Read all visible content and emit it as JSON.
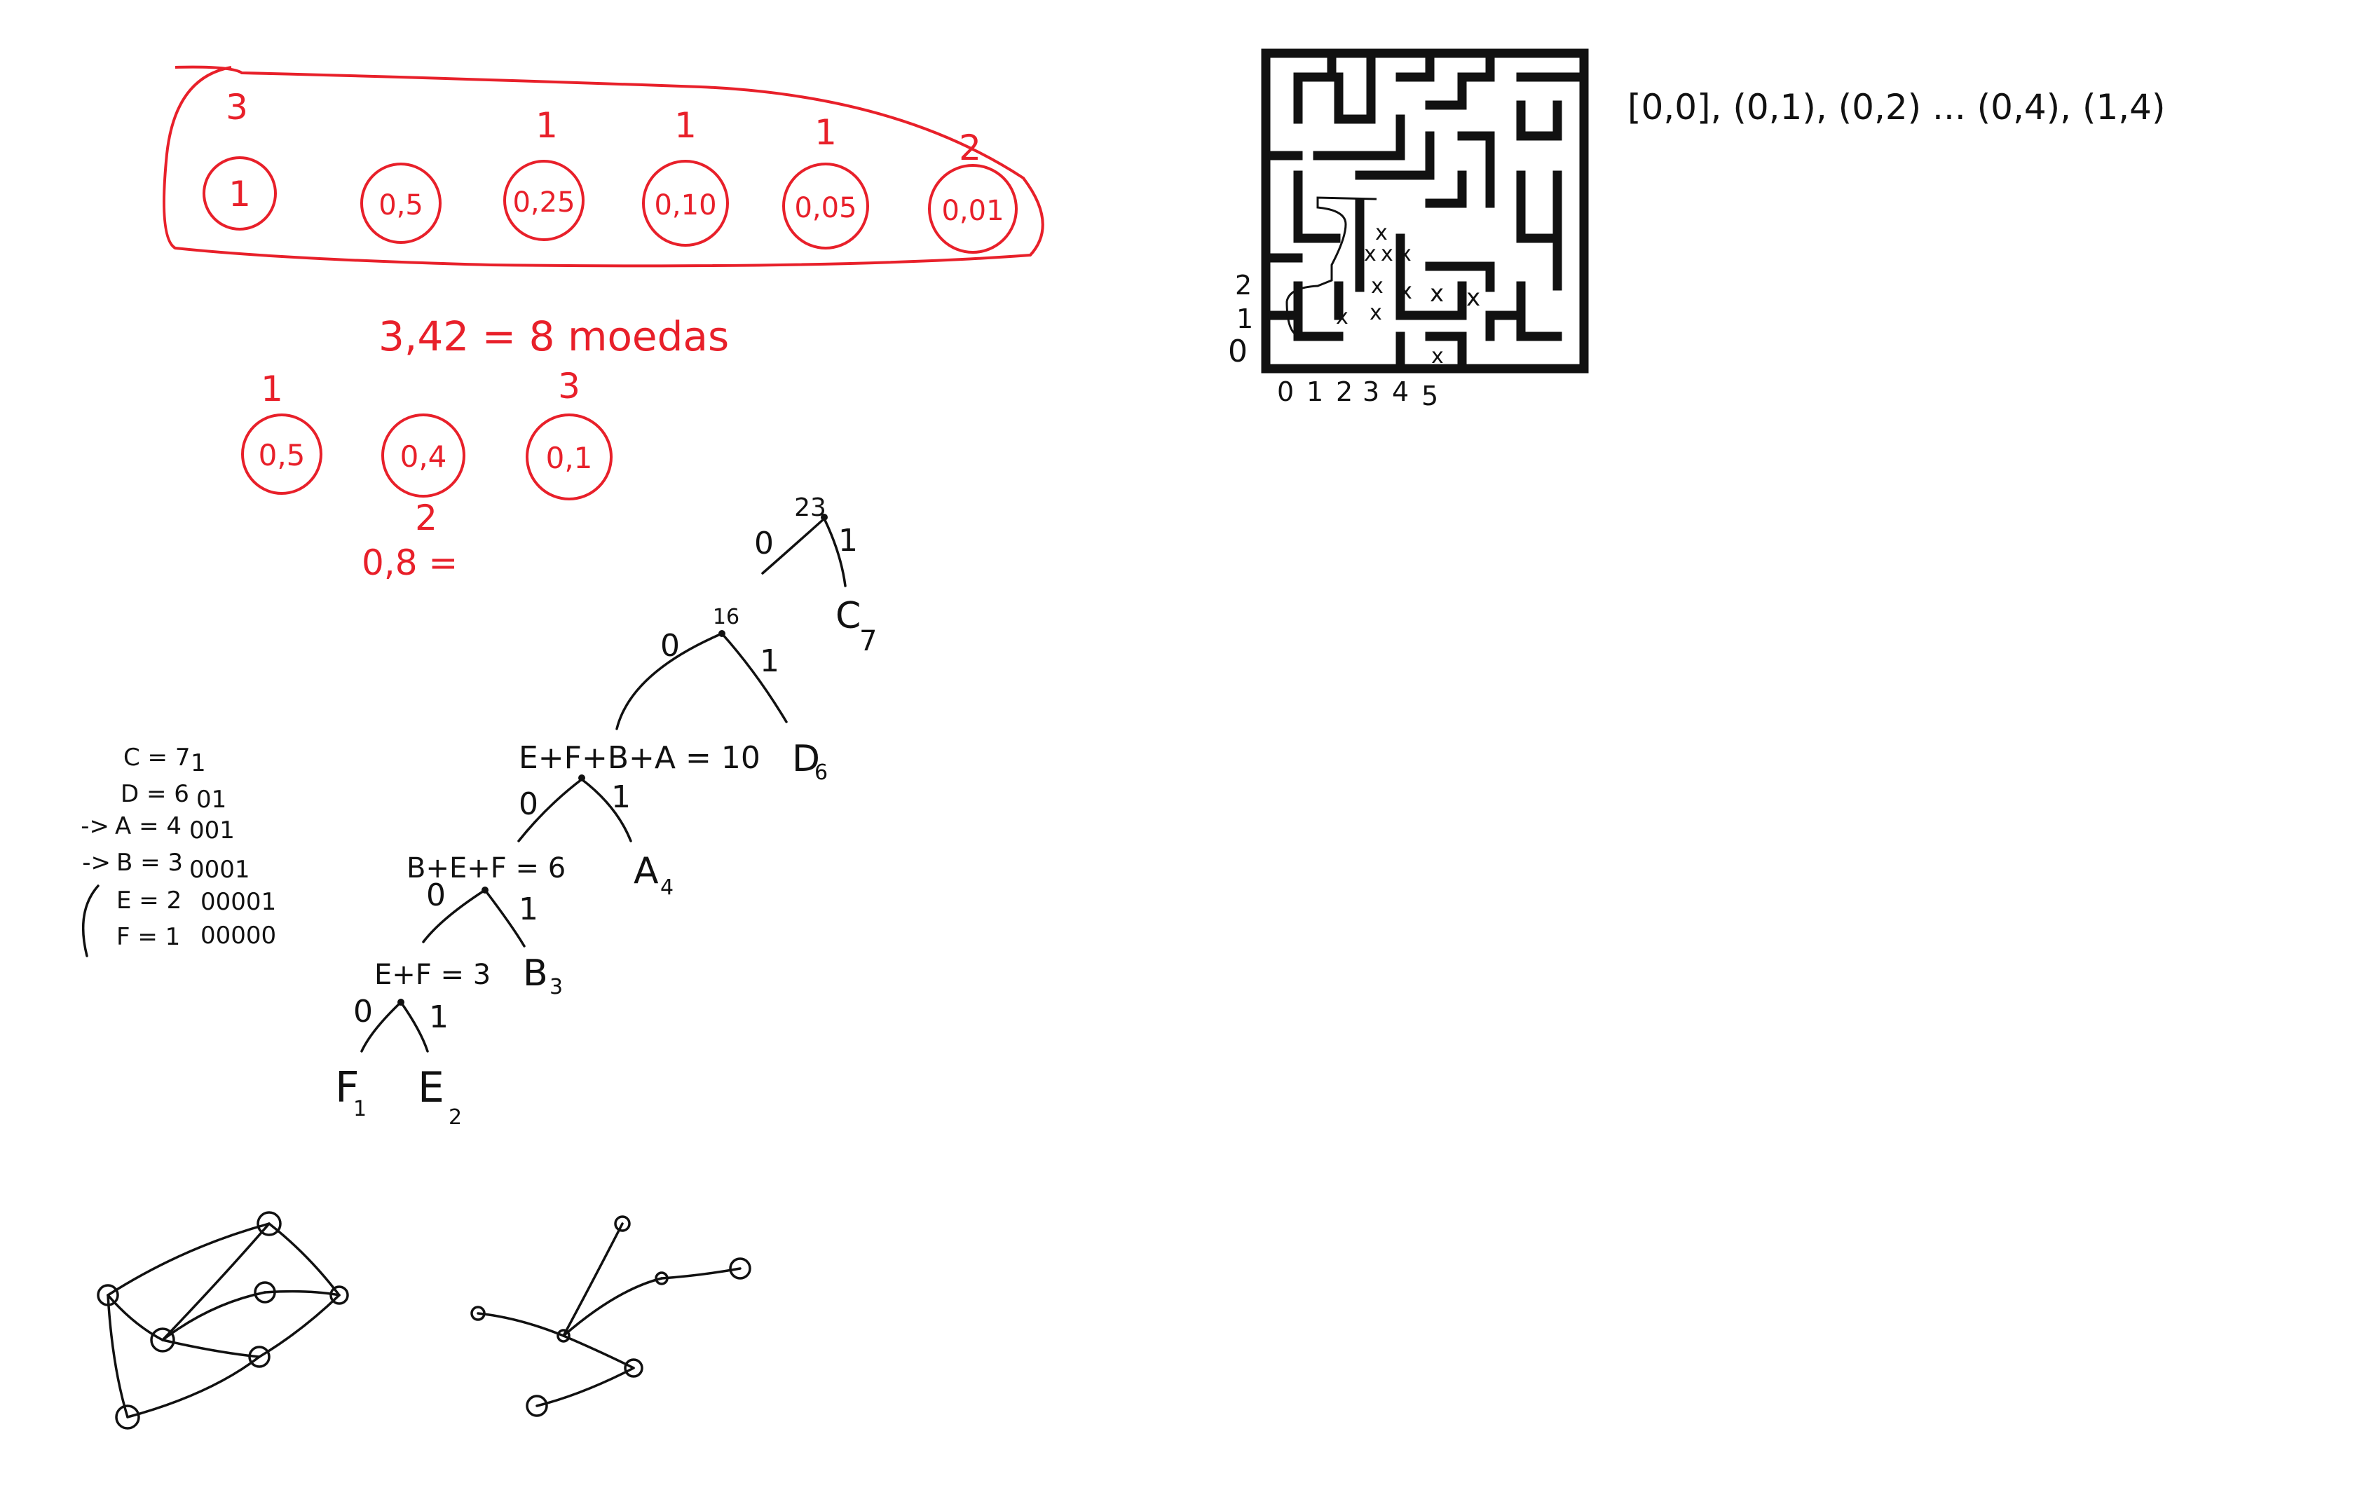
{
  "colors": {
    "red": "#e8202a",
    "ink": "#111111",
    "background": "#ffffff"
  },
  "coins": {
    "items": [
      {
        "value": "1",
        "count": "3"
      },
      {
        "value": "0,5",
        "count": ""
      },
      {
        "value": "0,25",
        "count": "1"
      },
      {
        "value": "0,10",
        "count": "1"
      },
      {
        "value": "0,05",
        "count": "1"
      },
      {
        "value": "0,01",
        "count": "2"
      }
    ],
    "total": "3,42 = 8 moedas"
  },
  "coins2": {
    "items": [
      {
        "value": "0,5",
        "count": "1"
      },
      {
        "value": "0,4",
        "count": "2"
      },
      {
        "value": "0,1",
        "count": "3"
      }
    ],
    "total": "0,8 ="
  },
  "huffman": {
    "table": [
      {
        "arrow": "",
        "label": "C = 7",
        "code": "1"
      },
      {
        "arrow": "",
        "label": "D = 6",
        "code": "01"
      },
      {
        "arrow": "->",
        "label": "A = 4",
        "code": "001"
      },
      {
        "arrow": "->",
        "label": "B = 3",
        "code": "0001"
      },
      {
        "arrow": "",
        "label": "E = 2",
        "code": "00001"
      },
      {
        "arrow": "",
        "label": "F = 1",
        "code": "00000"
      }
    ],
    "root": "23",
    "node16": "16",
    "node10": "E+F+B+A = 10",
    "node6": "B+E+F = 6",
    "node3": "E+F = 3",
    "leaves": {
      "C": {
        "letter": "C",
        "sub": "7"
      },
      "D": {
        "letter": "D",
        "sub": "6"
      },
      "A": {
        "letter": "A",
        "sub": "4"
      },
      "B": {
        "letter": "B",
        "sub": "3"
      },
      "F": {
        "letter": "F",
        "sub": "1"
      },
      "E": {
        "letter": "E",
        "sub": "2"
      }
    },
    "bit0": "0",
    "bit1": "1"
  },
  "maze": {
    "path_text": "[0,0], (0,1), (0,2) ... (0,4), (1,4)",
    "x_axis": [
      "0",
      "1",
      "2",
      "3",
      "4",
      "5"
    ],
    "y_axis": [
      "2",
      "1",
      "0"
    ],
    "mark": "x"
  }
}
